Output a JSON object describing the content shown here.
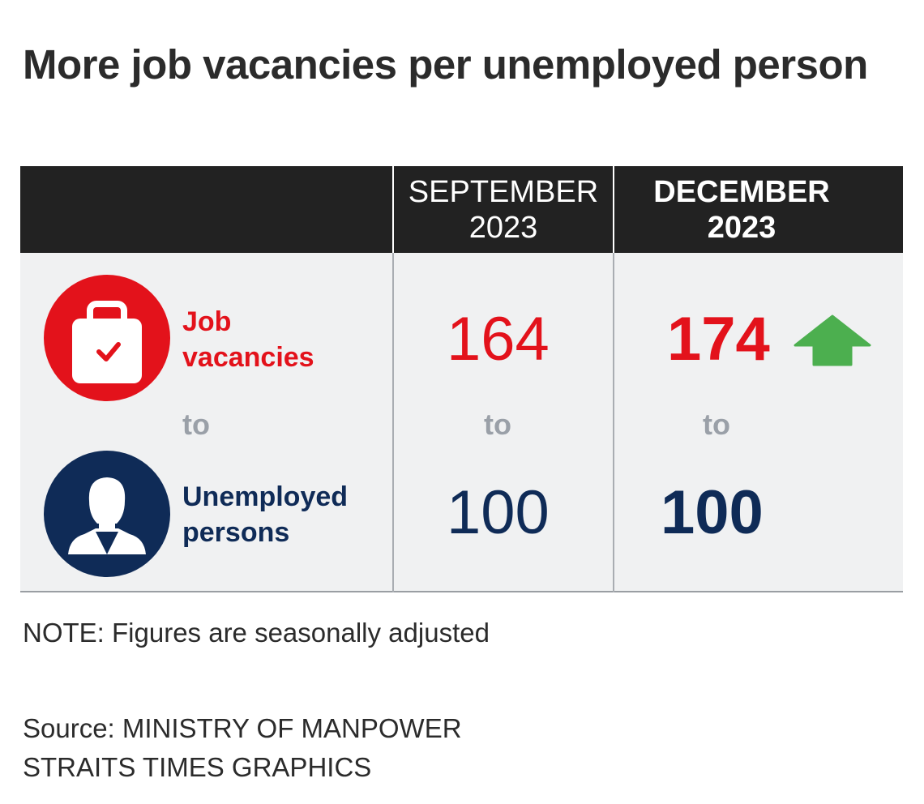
{
  "title": "More job vacancies per unemployed person",
  "chart_data": {
    "type": "table",
    "title": "More job vacancies per unemployed person",
    "columns": [
      {
        "line1": "SEPTEMBER",
        "line2": "2023"
      },
      {
        "line1": "DECEMBER",
        "line2": "2023"
      }
    ],
    "rows": [
      {
        "label": "Job vacancies",
        "label_line1": "Job",
        "label_line2": "vacancies",
        "icon": "briefcase-check-icon",
        "values": [
          "164",
          "174"
        ]
      },
      {
        "label": "Unemployed persons",
        "label_line1": "Unemployed",
        "label_line2": "persons",
        "icon": "person-icon",
        "values": [
          "100",
          "100"
        ]
      }
    ],
    "connector": "to",
    "trend": "up",
    "colors": {
      "vacancies": "#e3121b",
      "unemployed": "#0f2b57",
      "up_arrow": "#4caf4f",
      "header": "#222222",
      "body": "#f0f1f2"
    }
  },
  "note": "NOTE: Figures are seasonally adjusted",
  "source_line1": "Source: MINISTRY OF MANPOWER",
  "source_line2": "STRAITS TIMES GRAPHICS"
}
